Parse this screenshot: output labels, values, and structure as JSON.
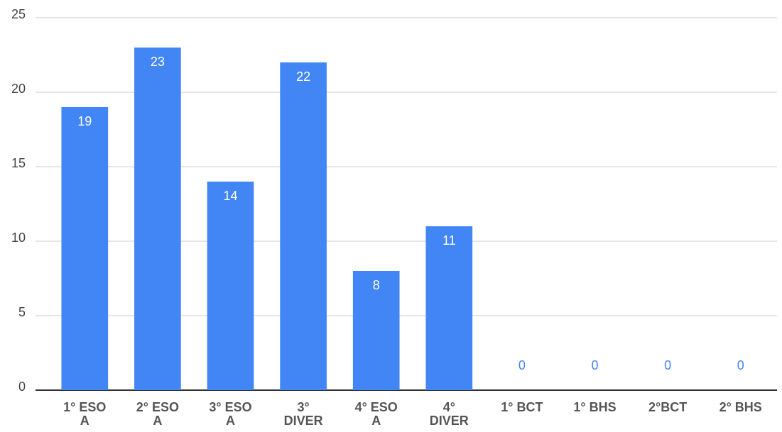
{
  "chart_data": {
    "type": "bar",
    "categories": [
      "1° ESO A",
      "2° ESO A",
      "3° ESO A",
      "3° DIVER",
      "4° ESO A",
      "4° DIVER",
      "1° BCT",
      "1° BHS",
      "2°BCT",
      "2° BHS"
    ],
    "values": [
      19,
      23,
      14,
      22,
      8,
      11,
      0,
      0,
      0,
      0
    ],
    "color": "#4285f4",
    "ylim": [
      0,
      25
    ],
    "yticks": [
      0,
      5,
      10,
      15,
      20,
      25
    ],
    "grid": true
  }
}
